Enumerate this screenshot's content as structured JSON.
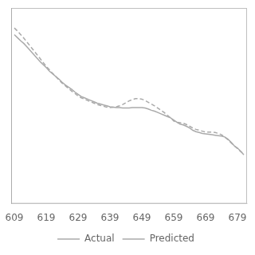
{
  "chart_data": {
    "type": "line",
    "x": [
      609,
      610,
      611,
      612,
      613,
      614,
      615,
      616,
      617,
      618,
      619,
      620,
      621,
      622,
      623,
      624,
      625,
      626,
      627,
      628,
      629,
      630,
      631,
      632,
      633,
      634,
      635,
      636,
      637,
      638,
      639,
      640,
      641,
      642,
      643,
      644,
      645,
      646,
      647,
      648,
      649,
      650,
      651,
      652,
      653,
      654,
      655,
      656,
      657,
      658,
      659,
      660,
      661,
      662,
      663,
      664,
      665,
      666,
      667,
      668,
      669,
      670,
      671,
      672,
      673,
      674,
      675,
      676,
      677,
      678,
      679,
      680,
      681
    ],
    "series": [
      {
        "name": "Actual",
        "color": "#aaaaaa",
        "line_style": "solid",
        "values": [
          0.96,
          0.953,
          0.946,
          0.94,
          0.932,
          0.924,
          0.916,
          0.908,
          0.9,
          0.893,
          0.886,
          0.878,
          0.872,
          0.866,
          0.86,
          0.853,
          0.847,
          0.842,
          0.837,
          0.831,
          0.826,
          0.821,
          0.818,
          0.815,
          0.812,
          0.809,
          0.806,
          0.804,
          0.802,
          0.8,
          0.798,
          0.797,
          0.796,
          0.796,
          0.795,
          0.795,
          0.795,
          0.796,
          0.796,
          0.796,
          0.796,
          0.795,
          0.793,
          0.79,
          0.788,
          0.785,
          0.782,
          0.779,
          0.776,
          0.773,
          0.768,
          0.763,
          0.759,
          0.757,
          0.754,
          0.75,
          0.745,
          0.742,
          0.74,
          0.738,
          0.737,
          0.736,
          0.735,
          0.734,
          0.733,
          0.732,
          0.73,
          0.725,
          0.718,
          0.71,
          0.705,
          0.698,
          0.69
        ]
      },
      {
        "name": "Predicted",
        "color": "#aaaaaa",
        "line_style": "dashed",
        "values": [
          0.975,
          0.968,
          0.96,
          0.952,
          0.943,
          0.934,
          0.925,
          0.916,
          0.907,
          0.898,
          0.889,
          0.881,
          0.873,
          0.866,
          0.858,
          0.851,
          0.845,
          0.839,
          0.833,
          0.828,
          0.822,
          0.818,
          0.815,
          0.812,
          0.809,
          0.806,
          0.803,
          0.801,
          0.799,
          0.797,
          0.796,
          0.797,
          0.798,
          0.8,
          0.803,
          0.807,
          0.811,
          0.814,
          0.816,
          0.816,
          0.815,
          0.812,
          0.808,
          0.804,
          0.8,
          0.795,
          0.79,
          0.785,
          0.779,
          0.773,
          0.766,
          0.763,
          0.762,
          0.761,
          0.758,
          0.754,
          0.75,
          0.747,
          0.745,
          0.743,
          0.741,
          0.741,
          0.741,
          0.74,
          0.738,
          0.735,
          0.73,
          0.724,
          0.717,
          0.71,
          0.704,
          0.697,
          0.692
        ]
      }
    ],
    "xlim": [
      608,
      682
    ],
    "xticks": [
      609,
      619,
      629,
      639,
      649,
      659,
      669,
      679
    ],
    "ylim": [
      0.58,
      1.02
    ],
    "tick_labels": "x",
    "grid": false,
    "legend": "bottom"
  }
}
